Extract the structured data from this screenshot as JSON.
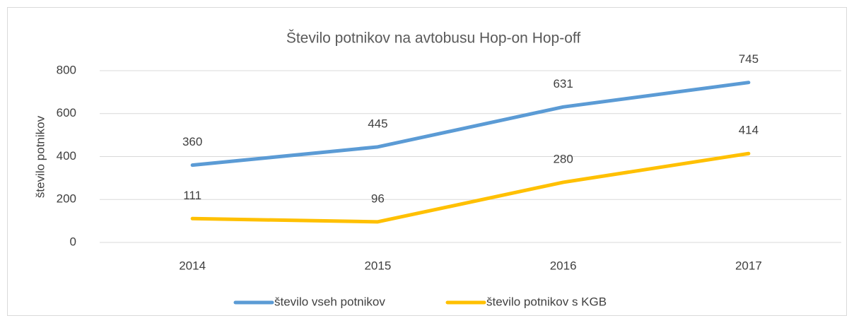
{
  "chart_data": {
    "type": "line",
    "title": "Število potnikov na avtobusu Hop-on Hop-off",
    "ylabel": "število potnikov",
    "categories": [
      "2014",
      "2015",
      "2016",
      "2017"
    ],
    "series": [
      {
        "name": "število vseh potnikov",
        "color": "#5b9bd5",
        "values": [
          360,
          445,
          631,
          745
        ]
      },
      {
        "name": "število potnikov s KGB",
        "color": "#ffc000",
        "values": [
          111,
          96,
          280,
          414
        ]
      }
    ],
    "ylim": [
      0,
      800
    ],
    "yticks": [
      0,
      200,
      400,
      600,
      800
    ],
    "grid": true,
    "legend": "bottom"
  }
}
